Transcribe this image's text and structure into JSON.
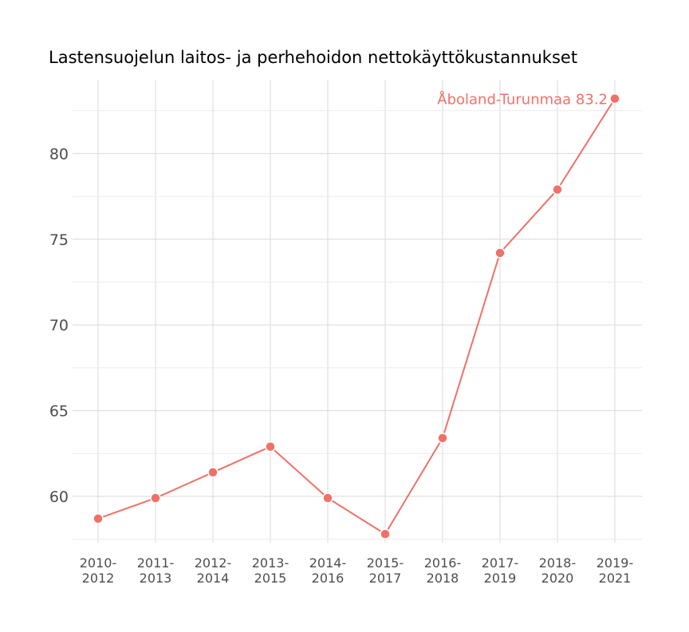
{
  "chart_data": {
    "type": "line",
    "title": "Lastensuojelun laitos- ja perhehoidon nettokäyttökustannukset",
    "xlabel": "",
    "ylabel": "",
    "categories": [
      [
        "2010-",
        "2012"
      ],
      [
        "2011-",
        "2013"
      ],
      [
        "2012-",
        "2014"
      ],
      [
        "2013-",
        "2015"
      ],
      [
        "2014-",
        "2016"
      ],
      [
        "2015-",
        "2017"
      ],
      [
        "2016-",
        "2018"
      ],
      [
        "2017-",
        "2019"
      ],
      [
        "2018-",
        "2020"
      ],
      [
        "2019-",
        "2021"
      ]
    ],
    "series": [
      {
        "values": [
          58.7,
          59.9,
          61.4,
          62.9,
          59.9,
          57.8,
          63.4,
          74.2,
          77.9,
          83.2
        ],
        "color": "#f07167"
      }
    ],
    "end_label": "Åboland-Turunmaa 83.2",
    "yticks": [
      60,
      65,
      70,
      75,
      80
    ],
    "ylim": [
      57.3,
      84.3
    ],
    "grid": true,
    "legend": "none"
  }
}
